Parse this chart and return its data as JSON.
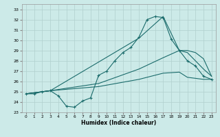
{
  "xlabel": "Humidex (Indice chaleur)",
  "bg_color": "#cceae8",
  "grid_color": "#b0d0ce",
  "line_color": "#1a6b6b",
  "xlim": [
    -0.5,
    23.5
  ],
  "ylim": [
    23,
    33.5
  ],
  "yticks": [
    23,
    24,
    25,
    26,
    27,
    28,
    29,
    30,
    31,
    32,
    33
  ],
  "xticks": [
    0,
    1,
    2,
    3,
    4,
    5,
    6,
    7,
    8,
    9,
    10,
    11,
    12,
    13,
    14,
    15,
    16,
    17,
    18,
    19,
    20,
    21,
    22,
    23
  ],
  "curve_main_x": [
    0,
    1,
    2,
    3,
    4,
    5,
    6,
    7,
    8,
    9,
    10,
    11,
    12,
    13,
    14,
    15,
    16,
    17,
    18,
    19,
    20,
    21,
    22,
    23
  ],
  "curve_main_y": [
    24.8,
    24.8,
    25.0,
    25.1,
    24.6,
    23.6,
    23.5,
    24.1,
    24.4,
    26.6,
    27.0,
    28.0,
    28.8,
    29.3,
    30.3,
    32.0,
    32.3,
    32.2,
    30.1,
    29.0,
    28.0,
    27.5,
    26.5,
    26.2
  ],
  "curve_top_x": [
    0,
    3,
    14,
    17,
    19,
    20,
    21,
    22,
    23
  ],
  "curve_top_y": [
    24.8,
    25.1,
    30.2,
    32.3,
    29.0,
    28.8,
    28.0,
    27.2,
    26.5
  ],
  "curve_mid_x": [
    0,
    3,
    9,
    14,
    17,
    19,
    20,
    21,
    22,
    23
  ],
  "curve_mid_y": [
    24.8,
    25.1,
    25.8,
    27.2,
    28.3,
    29.0,
    29.0,
    28.8,
    28.2,
    26.5
  ],
  "curve_low_x": [
    0,
    3,
    9,
    14,
    17,
    19,
    20,
    21,
    22,
    23
  ],
  "curve_low_y": [
    24.8,
    25.1,
    25.5,
    26.2,
    26.8,
    26.9,
    26.4,
    26.3,
    26.2,
    26.2
  ]
}
